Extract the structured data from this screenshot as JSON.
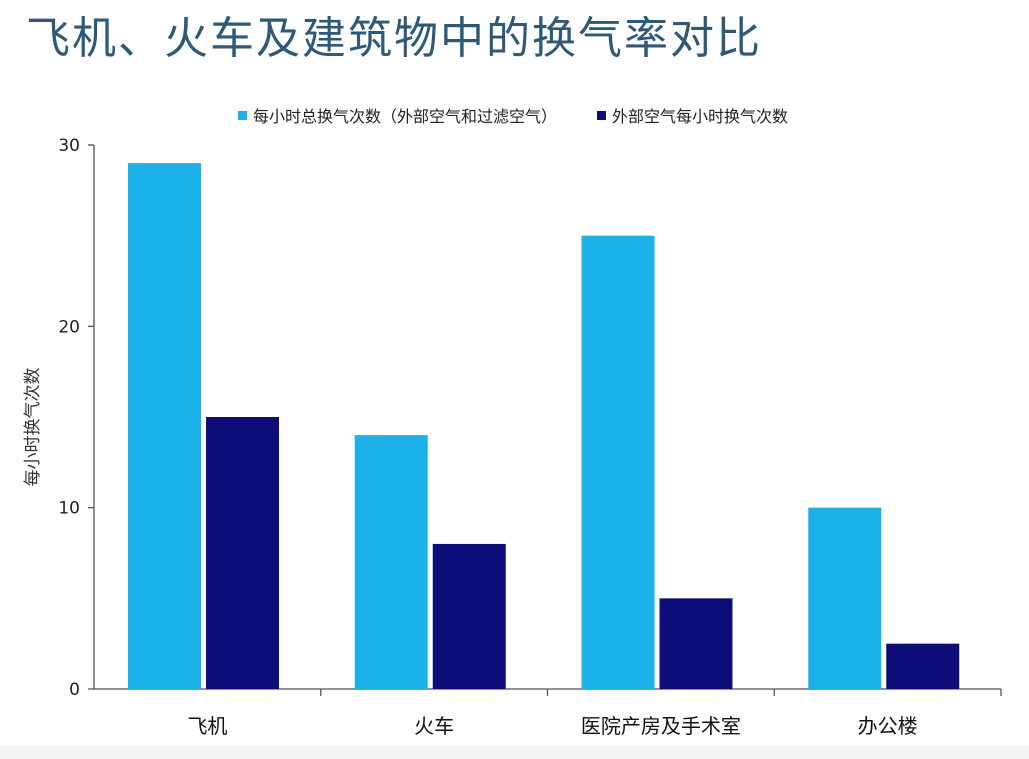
{
  "title": "飞机、火车及建筑物中的换气率对比",
  "chart_data": {
    "type": "bar",
    "title": "飞机、火车及建筑物中的换气率对比",
    "xlabel": "",
    "ylabel": "每小时换气次数",
    "categories": [
      "飞机",
      "火车",
      "医院产房及手术室",
      "办公楼"
    ],
    "series": [
      {
        "name": "每小时总换气次数（外部空气和过滤空气）",
        "color": "#1ab2e8",
        "values": [
          29,
          14,
          25,
          10
        ]
      },
      {
        "name": "外部空气每小时换气次数",
        "color": "#0d0d7a",
        "values": [
          15,
          8,
          5,
          2.5
        ]
      }
    ],
    "ylim": [
      0,
      30
    ],
    "yticks": [
      0,
      10,
      20,
      30
    ],
    "legend_position": "top",
    "grid": false
  }
}
